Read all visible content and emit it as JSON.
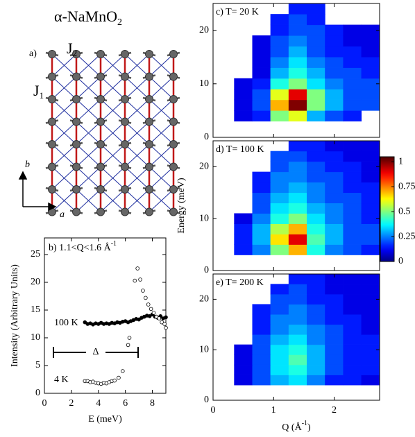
{
  "figure": {
    "title": "α-NaMnO",
    "title_sub": "2",
    "lattice": {
      "label": "a)",
      "J2": "J",
      "J2_sub": "2",
      "J1": "J",
      "J1_sub": "1",
      "axis_b": "b",
      "axis_a": "a"
    }
  },
  "chart_data": [
    {
      "type": "scatter",
      "title": "b) 1.1<Q<1.6 Å",
      "title_sup": "-1",
      "xlabel": "E (meV)",
      "ylabel": "Intensity (Arbitrary Units)",
      "annotation": "Δ",
      "xlim": [
        0,
        9
      ],
      "ylim": [
        0,
        28
      ],
      "xticks": [
        0,
        2,
        4,
        6,
        8
      ],
      "yticks": [
        0,
        5,
        10,
        15,
        20,
        25
      ],
      "series": [
        {
          "name": "100 K",
          "color": "#000000",
          "filled": true,
          "x": [
            3.0,
            3.2,
            3.4,
            3.6,
            3.8,
            4.0,
            4.2,
            4.4,
            4.6,
            4.8,
            5.0,
            5.2,
            5.4,
            5.6,
            5.8,
            6.0,
            6.2,
            6.4,
            6.6,
            6.8,
            7.0,
            7.2,
            7.4,
            7.6,
            7.8,
            8.0,
            8.2,
            8.4,
            8.6,
            8.8,
            9.0
          ],
          "values": [
            12.8,
            12.5,
            12.6,
            12.4,
            12.6,
            12.5,
            12.7,
            12.5,
            12.6,
            12.5,
            12.7,
            12.6,
            12.8,
            12.7,
            12.9,
            13.0,
            12.8,
            13.0,
            13.2,
            13.4,
            13.3,
            13.6,
            13.8,
            14.0,
            13.9,
            14.2,
            13.8,
            13.6,
            13.9,
            13.5,
            13.7
          ]
        },
        {
          "name": "4 K",
          "color": "#000000",
          "filled": false,
          "x": [
            3.0,
            3.2,
            3.4,
            3.6,
            3.8,
            4.0,
            4.2,
            4.4,
            4.6,
            4.8,
            5.0,
            5.2,
            5.5,
            5.8,
            6.2,
            6.3,
            6.7,
            6.9,
            7.1,
            7.3,
            7.5,
            7.7,
            7.9,
            8.1,
            8.3,
            8.5,
            8.7,
            8.9,
            9.0
          ],
          "values": [
            2.2,
            2.2,
            2.0,
            2.1,
            1.9,
            1.8,
            1.7,
            1.9,
            1.8,
            2.0,
            2.2,
            2.3,
            2.8,
            4.0,
            8.7,
            10.0,
            20.3,
            22.5,
            20.5,
            18.5,
            17.2,
            16.0,
            15.2,
            14.5,
            13.8,
            13.5,
            12.8,
            12.5,
            11.8
          ]
        }
      ]
    },
    {
      "type": "heatmap",
      "title": "c) T= 20 K",
      "colormap": "jet",
      "xlim": [
        0,
        2.75
      ],
      "ylim": [
        0,
        25
      ],
      "xticks": [
        0,
        1,
        2
      ],
      "yticks": [
        0,
        10,
        20
      ],
      "x": [
        0.5,
        0.8,
        1.1,
        1.4,
        1.7,
        2.0,
        2.3,
        2.6
      ],
      "y": [
        4,
        6,
        8,
        10,
        12,
        14,
        16,
        18,
        20,
        22,
        24
      ],
      "z": [
        [
          0.1,
          0.15,
          0.5,
          0.6,
          0.3,
          0.2,
          0.15,
          null
        ],
        [
          0.1,
          0.2,
          0.7,
          1.0,
          0.5,
          0.3,
          0.2,
          0.2
        ],
        [
          0.1,
          0.2,
          0.6,
          0.9,
          0.5,
          0.3,
          0.2,
          0.2
        ],
        [
          0.1,
          0.15,
          0.4,
          0.5,
          0.35,
          0.25,
          0.2,
          0.2
        ],
        [
          null,
          0.1,
          0.3,
          0.4,
          0.3,
          0.2,
          0.2,
          0.15
        ],
        [
          null,
          0.1,
          0.25,
          0.35,
          0.25,
          0.2,
          0.15,
          0.15
        ],
        [
          null,
          0.1,
          0.2,
          0.3,
          0.2,
          0.15,
          0.15,
          0.1
        ],
        [
          null,
          0.1,
          0.2,
          0.25,
          0.2,
          0.15,
          0.1,
          0.1
        ],
        [
          null,
          null,
          0.15,
          0.2,
          0.2,
          0.15,
          0.1,
          0.1
        ],
        [
          null,
          null,
          0.15,
          0.2,
          0.15,
          null,
          null,
          null
        ],
        [
          null,
          null,
          null,
          0.15,
          0.15,
          null,
          null,
          null
        ]
      ]
    },
    {
      "type": "heatmap",
      "title": "d) T= 100 K",
      "colormap": "jet",
      "ylabel": "Energy (meV)",
      "xlim": [
        0,
        2.75
      ],
      "ylim": [
        0,
        25
      ],
      "xticks": [
        0,
        1,
        2
      ],
      "yticks": [
        0,
        10,
        20
      ],
      "x": [
        0.5,
        0.8,
        1.1,
        1.4,
        1.7,
        2.0,
        2.3,
        2.6
      ],
      "y": [
        4,
        6,
        8,
        10,
        12,
        14,
        16,
        18,
        20,
        22,
        24
      ],
      "z": [
        [
          0.15,
          0.25,
          0.5,
          0.7,
          0.4,
          0.25,
          0.2,
          0.15
        ],
        [
          0.15,
          0.3,
          0.65,
          0.9,
          0.45,
          0.3,
          0.2,
          0.2
        ],
        [
          0.15,
          0.3,
          0.55,
          0.7,
          0.4,
          0.3,
          0.2,
          0.2
        ],
        [
          0.1,
          0.25,
          0.4,
          0.5,
          0.35,
          0.25,
          0.2,
          0.15
        ],
        [
          null,
          0.2,
          0.35,
          0.4,
          0.3,
          0.25,
          0.2,
          0.15
        ],
        [
          null,
          0.2,
          0.3,
          0.35,
          0.25,
          0.2,
          0.2,
          0.15
        ],
        [
          null,
          0.15,
          0.25,
          0.3,
          0.25,
          0.2,
          0.15,
          0.15
        ],
        [
          null,
          0.15,
          0.25,
          0.25,
          0.2,
          0.2,
          0.15,
          0.1
        ],
        [
          null,
          null,
          0.2,
          0.25,
          0.2,
          0.15,
          0.15,
          0.1
        ],
        [
          null,
          null,
          0.2,
          0.2,
          0.15,
          0.15,
          0.1,
          0.1
        ],
        [
          null,
          null,
          null,
          0.15,
          0.15,
          0.1,
          0.1,
          0.1
        ]
      ]
    },
    {
      "type": "heatmap",
      "title": "e) T= 200 K",
      "colormap": "jet",
      "xlabel": "Q (Å",
      "xlabel_sup": "-1",
      "xlabel_end": ")",
      "xlim": [
        0,
        2.75
      ],
      "ylim": [
        0,
        25
      ],
      "xticks": [
        0,
        1,
        2
      ],
      "yticks": [
        0,
        10,
        20
      ],
      "x": [
        0.5,
        0.8,
        1.1,
        1.4,
        1.7,
        2.0,
        2.3,
        2.6
      ],
      "y": [
        4,
        6,
        8,
        10,
        12,
        14,
        16,
        18,
        20,
        22,
        24
      ],
      "z": [
        [
          0.1,
          0.2,
          0.3,
          0.35,
          0.25,
          0.15,
          0.15,
          0.1
        ],
        [
          0.1,
          0.2,
          0.35,
          0.4,
          0.3,
          0.2,
          0.15,
          0.15
        ],
        [
          0.1,
          0.2,
          0.35,
          0.45,
          0.3,
          0.2,
          0.15,
          0.15
        ],
        [
          0.1,
          0.2,
          0.35,
          0.4,
          0.3,
          0.2,
          0.15,
          0.15
        ],
        [
          null,
          0.2,
          0.3,
          0.35,
          0.25,
          0.2,
          0.15,
          0.15
        ],
        [
          null,
          0.15,
          0.25,
          0.3,
          0.25,
          0.2,
          0.15,
          0.1
        ],
        [
          null,
          0.15,
          0.25,
          0.25,
          0.2,
          0.15,
          0.15,
          0.1
        ],
        [
          null,
          0.15,
          0.2,
          0.25,
          0.2,
          0.15,
          0.1,
          0.1
        ],
        [
          null,
          null,
          0.2,
          0.2,
          0.15,
          0.15,
          0.1,
          0.1
        ],
        [
          null,
          null,
          0.15,
          0.2,
          0.15,
          0.1,
          0.1,
          0.1
        ],
        [
          null,
          null,
          null,
          0.15,
          0.15,
          0.1,
          0.1,
          0.1
        ]
      ]
    },
    {
      "type": "colorbar",
      "colormap": "jet",
      "ylim": [
        0,
        1.05
      ],
      "yticks": [
        0,
        0.25,
        0.5,
        0.75,
        1
      ]
    }
  ]
}
